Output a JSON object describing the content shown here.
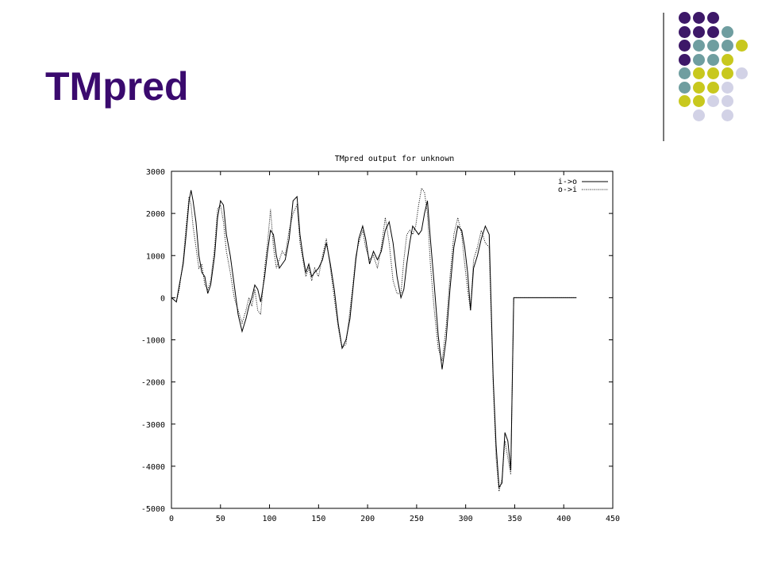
{
  "slide": {
    "title": "TMpred",
    "colors": {
      "title": "#3a0a6e",
      "dot_purple": "#3d1868",
      "dot_teal": "#6f9ea0",
      "dot_yellow": "#c8c81e",
      "dot_lavender": "#d2d2e6"
    }
  },
  "chart_data": {
    "type": "line",
    "title": "TMpred output for unknown",
    "xlabel": "",
    "ylabel": "",
    "xlim": [
      0,
      450
    ],
    "ylim": [
      -5000,
      3000
    ],
    "xticks": [
      0,
      50,
      100,
      150,
      200,
      250,
      300,
      350,
      400,
      450
    ],
    "yticks": [
      3000,
      2000,
      1000,
      0,
      -1000,
      -2000,
      -3000,
      -4000,
      -5000
    ],
    "grid": false,
    "legend_position": "top-right",
    "series": [
      {
        "name": "i->o",
        "style": "solid",
        "x": [
          0,
          5,
          8,
          12,
          15,
          18,
          20,
          22,
          25,
          28,
          31,
          34,
          37,
          40,
          44,
          47,
          50,
          53,
          56,
          60,
          64,
          68,
          72,
          76,
          79,
          82,
          85,
          88,
          91,
          95,
          98,
          101,
          104,
          107,
          110,
          113,
          116,
          120,
          124,
          128,
          131,
          134,
          137,
          140,
          143,
          146,
          150,
          154,
          158,
          162,
          166,
          170,
          174,
          178,
          182,
          185,
          188,
          191,
          195,
          198,
          202,
          206,
          210,
          214,
          218,
          222,
          226,
          230,
          234,
          237,
          240,
          243,
          246,
          249,
          252,
          255,
          258,
          261,
          264,
          268,
          272,
          276,
          280,
          284,
          288,
          292,
          296,
          299,
          302,
          305,
          308,
          312,
          316,
          320,
          324,
          328,
          331,
          334,
          337,
          340,
          343,
          346,
          349,
          352,
          355,
          358,
          362,
          366,
          370,
          373,
          376,
          379,
          382,
          385,
          388,
          391,
          394,
          397,
          400,
          403,
          406,
          408,
          410,
          413
        ],
        "y": [
          0,
          -100,
          300,
          800,
          1500,
          2300,
          2550,
          2300,
          1800,
          1000,
          600,
          500,
          100,
          300,
          1000,
          1900,
          2300,
          2200,
          1500,
          1000,
          300,
          -400,
          -800,
          -500,
          -200,
          0,
          300,
          200,
          -100,
          500,
          1100,
          1600,
          1500,
          1000,
          700,
          800,
          900,
          1400,
          2300,
          2400,
          1500,
          1000,
          600,
          800,
          500,
          600,
          700,
          900,
          1300,
          800,
          200,
          -600,
          -1200,
          -1000,
          -500,
          200,
          900,
          1400,
          1700,
          1400,
          800,
          1100,
          900,
          1100,
          1600,
          1800,
          1300,
          500,
          0,
          200,
          800,
          1300,
          1700,
          1600,
          1500,
          1600,
          2000,
          2300,
          1400,
          300,
          -900,
          -1700,
          -1000,
          200,
          1200,
          1700,
          1600,
          1200,
          600,
          -300,
          700,
          1000,
          1400,
          1700,
          1500,
          -1900,
          -3500,
          -4500,
          -4400,
          -3200,
          -3400,
          -4100,
          0,
          0,
          0,
          0,
          0,
          0,
          0,
          0,
          0,
          0,
          0,
          0,
          0,
          0,
          0,
          0,
          0,
          0,
          0,
          0,
          0,
          0
        ],
        "note": ""
      },
      {
        "name": "o->i",
        "style": "dotted",
        "x": [
          0,
          5,
          8,
          12,
          15,
          18,
          20,
          22,
          25,
          28,
          31,
          34,
          37,
          40,
          44,
          47,
          50,
          53,
          56,
          60,
          64,
          68,
          72,
          76,
          79,
          82,
          85,
          88,
          91,
          95,
          98,
          101,
          104,
          107,
          110,
          113,
          116,
          120,
          124,
          128,
          131,
          134,
          137,
          140,
          143,
          146,
          150,
          154,
          158,
          162,
          166,
          170,
          174,
          178,
          182,
          185,
          188,
          191,
          195,
          198,
          202,
          206,
          210,
          214,
          218,
          222,
          226,
          230,
          234,
          237,
          240,
          243,
          246,
          249,
          252,
          255,
          258,
          261,
          264,
          268,
          272,
          276,
          280,
          284,
          288,
          292,
          296,
          299,
          302,
          305,
          308,
          312,
          316,
          320,
          324,
          328,
          331,
          334,
          337,
          340,
          343,
          346,
          349,
          352,
          355,
          358,
          362,
          366,
          370,
          373,
          376,
          379,
          382,
          385,
          388,
          391,
          394,
          397,
          400,
          403,
          406,
          408,
          410,
          413
        ],
        "y": [
          0,
          -100,
          200,
          900,
          1700,
          2400,
          2200,
          1700,
          1200,
          700,
          800,
          300,
          200,
          400,
          1200,
          2100,
          2200,
          1800,
          1100,
          600,
          0,
          -300,
          -600,
          -300,
          0,
          -200,
          200,
          -300,
          -400,
          700,
          1300,
          2100,
          1200,
          700,
          900,
          1100,
          1000,
          1600,
          2000,
          2200,
          1300,
          900,
          500,
          700,
          400,
          700,
          500,
          1000,
          1400,
          700,
          0,
          -700,
          -1200,
          -1100,
          -300,
          300,
          1000,
          1300,
          1600,
          1200,
          900,
          1000,
          700,
          1200,
          1900,
          1300,
          400,
          100,
          100,
          900,
          1500,
          1600,
          1500,
          1700,
          2200,
          2600,
          2500,
          2000,
          800,
          -300,
          -1200,
          -1500,
          -700,
          500,
          1500,
          1900,
          1500,
          800,
          200,
          -300,
          900,
          1200,
          1600,
          1300,
          1200,
          -2000,
          -3800,
          -4600,
          -4300,
          -3400,
          -3800,
          -4200,
          0,
          0,
          0,
          0,
          0,
          0,
          0,
          0,
          0,
          0,
          0,
          0,
          0,
          0,
          0,
          0,
          0,
          0,
          0,
          0,
          0,
          0
        ],
        "note": ""
      }
    ]
  }
}
